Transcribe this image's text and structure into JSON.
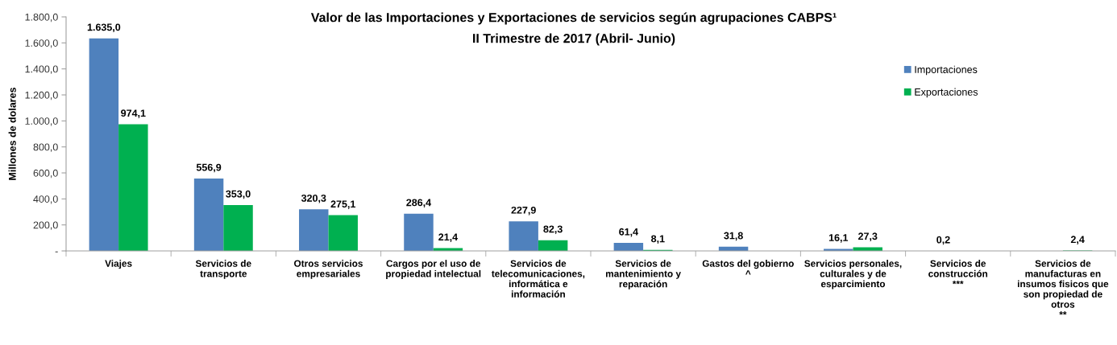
{
  "chart_data": {
    "type": "bar",
    "title": "Valor de las Importaciones y Exportaciones de servicios según agrupaciones CABPS¹",
    "subtitle": "II Trimestre de 2017 (Abril- Junio)",
    "ylabel": "Millones de dolares",
    "categories": [
      "Viajes",
      "Servicios de\ntransporte",
      "Otros servicios\nempresariales",
      "Cargos por el uso de\npropiedad intelectual",
      "Servicios de\ntelecomunicaciones,\ninformática e\ninformación",
      "Servicios de\nmantenimiento y\nreparación",
      "Gastos del gobierno\n^",
      "Servicios personales,\nculturales y de\nesparcimiento",
      "Servicios de\nconstrucción\n***",
      "Servicios de\nmanufacturas en\ninsumos fisicos que\nson propiedad de\notros\n**"
    ],
    "series": [
      {
        "name": "Importaciones",
        "color": "#4f81bd",
        "values": [
          1635.0,
          556.9,
          320.3,
          286.4,
          227.9,
          61.4,
          31.8,
          16.1,
          0.2,
          null
        ],
        "value_labels": [
          "1.635,0",
          "556,9",
          "320,3",
          "286,4",
          "227,9",
          "61,4",
          "31,8",
          "16,1",
          "0,2",
          null
        ]
      },
      {
        "name": "Exportaciones",
        "color": "#00b050",
        "values": [
          974.1,
          353.0,
          275.1,
          21.4,
          82.3,
          8.1,
          null,
          27.3,
          null,
          2.4
        ],
        "value_labels": [
          "974,1",
          "353,0",
          "275,1",
          "21,4",
          "82,3",
          "8,1",
          null,
          "27,3",
          null,
          "2,4"
        ]
      }
    ],
    "ylim": [
      0,
      1800
    ],
    "yticks": [
      {
        "value": 0,
        "label": "-"
      },
      {
        "value": 200,
        "label": "200,0"
      },
      {
        "value": 400,
        "label": "400,0"
      },
      {
        "value": 600,
        "label": "600,0"
      },
      {
        "value": 800,
        "label": "800,0"
      },
      {
        "value": 1000,
        "label": "1.000,0"
      },
      {
        "value": 1200,
        "label": "1.200,0"
      },
      {
        "value": 1400,
        "label": "1.400,0"
      },
      {
        "value": 1600,
        "label": "1.600,0"
      },
      {
        "value": 1800,
        "label": "1.800,0"
      }
    ],
    "legend": "top right"
  }
}
